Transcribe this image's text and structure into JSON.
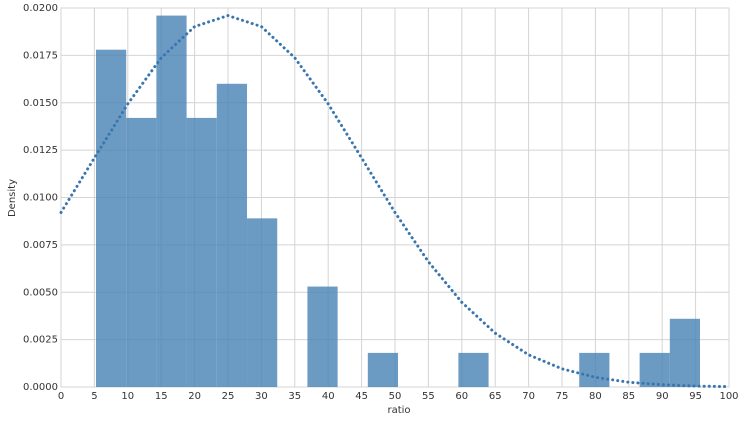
{
  "chart_data": {
    "type": "histogram",
    "xlabel": "ratio",
    "ylabel": "Density",
    "bins": [
      5.24,
      9.76,
      14.28,
      18.8,
      23.32,
      27.85,
      32.37,
      36.89,
      41.41,
      45.93,
      50.45,
      54.97,
      59.49,
      64.01,
      68.53,
      73.06,
      77.58,
      82.1,
      86.62,
      91.14,
      95.66
    ],
    "values": [
      0.0178,
      0.0142,
      0.0196,
      0.0142,
      0.016,
      0.0089,
      0,
      0.0053,
      0,
      0.0018,
      0,
      0,
      0.0018,
      0,
      0,
      0,
      0.0018,
      0,
      0.0018,
      0.0036
    ],
    "color": "#4682b4",
    "density_curve": {
      "x": [
        0,
        5,
        10,
        15,
        20,
        25,
        30,
        35,
        40,
        45,
        50,
        55,
        60,
        65,
        70,
        75,
        80,
        85,
        90,
        95,
        100
      ],
      "values": [
        0.00921,
        0.01209,
        0.01494,
        0.01737,
        0.01902,
        0.0196,
        0.01902,
        0.01737,
        0.01494,
        0.01209,
        0.00921,
        0.00661,
        0.00447,
        0.00284,
        0.0017,
        0.00096,
        0.00051,
        0.00025,
        0.00012,
        5e-05,
        2e-05
      ],
      "color": "#3a76ae",
      "style": "dotted"
    },
    "xlim": [
      0,
      100
    ],
    "ylim": [
      0,
      0.02
    ],
    "xticks": [
      0,
      5,
      10,
      15,
      20,
      25,
      30,
      35,
      40,
      45,
      50,
      55,
      60,
      65,
      70,
      75,
      80,
      85,
      90,
      95,
      100
    ],
    "yticks": [
      {
        "value": 0,
        "label": "0.0000"
      },
      {
        "value": 0.0025,
        "label": "0.0025"
      },
      {
        "value": 0.005,
        "label": "0.0050"
      },
      {
        "value": 0.0075,
        "label": "0.0075"
      },
      {
        "value": 0.01,
        "label": "0.0100"
      },
      {
        "value": 0.0125,
        "label": "0.0125"
      },
      {
        "value": 0.015,
        "label": "0.0150"
      },
      {
        "value": 0.0175,
        "label": "0.0175"
      },
      {
        "value": 0.02,
        "label": "0.0200"
      }
    ],
    "grid": true
  }
}
